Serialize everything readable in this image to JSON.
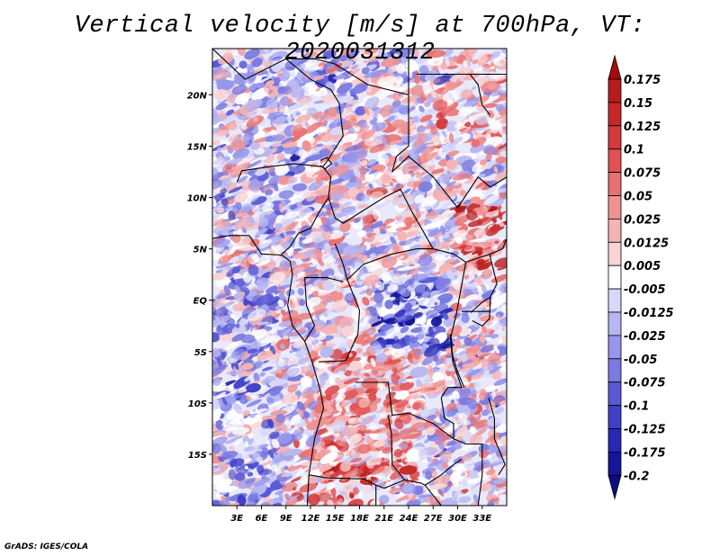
{
  "title": "Vertical velocity [m/s] at 700hPa, VT: 2020031312",
  "footer": "GrADS: IGES/COLA",
  "chart_data": {
    "type": "heatmap",
    "title": "Vertical velocity [m/s] at 700hPa, VT: 2020031312",
    "variable": "Vertical velocity",
    "units": "m/s",
    "level": "700hPa",
    "valid_time": "2020031312",
    "xlim": [
      0,
      36
    ],
    "ylim": [
      -20,
      24.5
    ],
    "x_ticks": [
      3,
      6,
      9,
      12,
      15,
      18,
      21,
      24,
      27,
      30,
      33
    ],
    "x_tick_labels": [
      "3E",
      "6E",
      "9E",
      "12E",
      "15E",
      "18E",
      "21E",
      "24E",
      "27E",
      "30E",
      "33E"
    ],
    "y_ticks": [
      20,
      15,
      10,
      5,
      0,
      -5,
      -10,
      -15
    ],
    "y_tick_labels": [
      "20N",
      "15N",
      "10N",
      "5N",
      "EQ",
      "5S",
      "10S",
      "15S"
    ],
    "colorbar": {
      "levels": [
        "0.175",
        "0.15",
        "0.125",
        "0.1",
        "0.075",
        "0.05",
        "0.025",
        "0.0125",
        "0.005",
        "-0.005",
        "-0.0125",
        "-0.025",
        "-0.05",
        "-0.075",
        "-0.1",
        "-0.125",
        "-0.175",
        "-0.2"
      ],
      "colors": [
        "#a80a0a",
        "#b71c1c",
        "#c62828",
        "#d53a3a",
        "#e05252",
        "#e87070",
        "#f09191",
        "#f5b3b3",
        "#fad4d4",
        "#ffffff",
        "#d8d8fa",
        "#b6b6f2",
        "#9696ec",
        "#7a7ae2",
        "#5a5ad6",
        "#3f3fc8",
        "#2828b4",
        "#16169a",
        "#0d0d80"
      ]
    }
  }
}
